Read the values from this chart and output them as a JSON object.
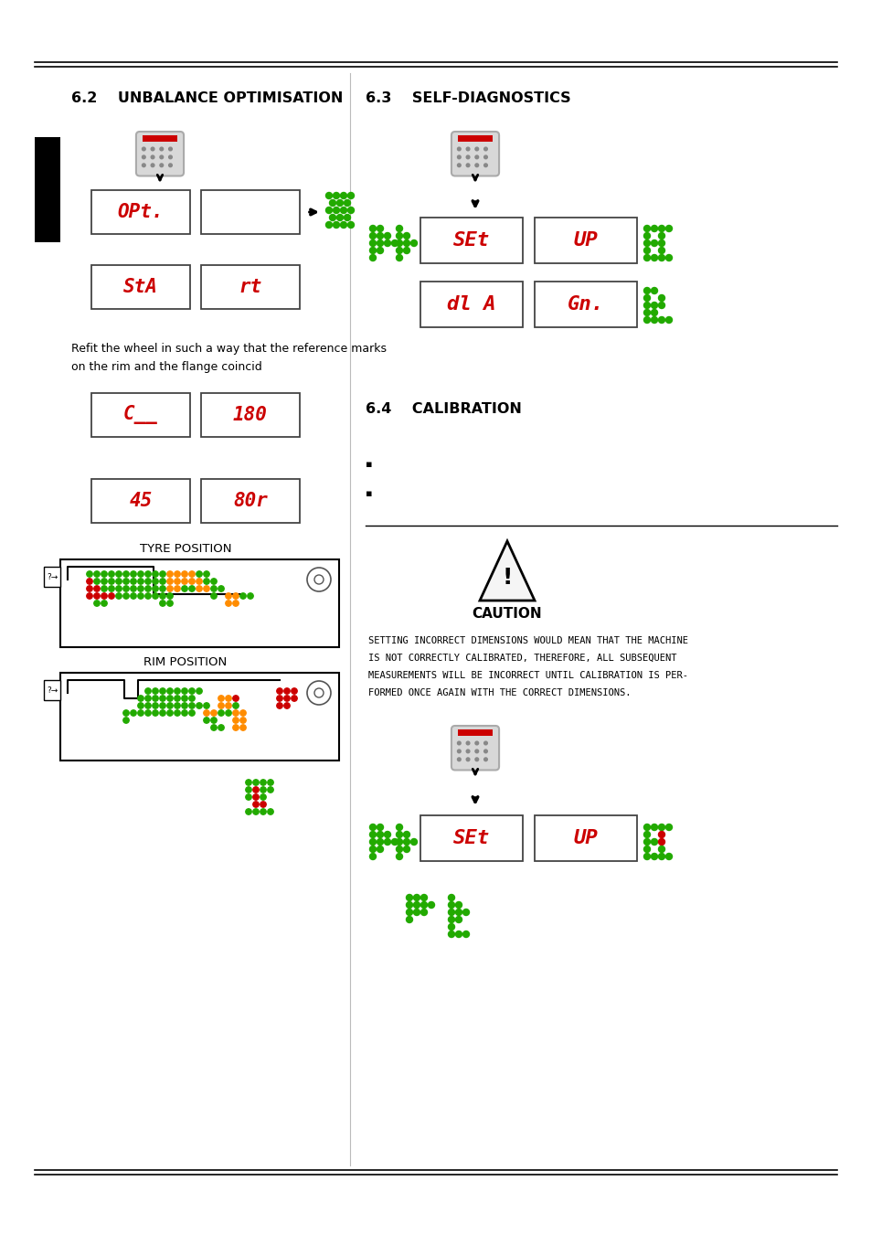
{
  "page_bg": "#ffffff",
  "section_62_title": "6.2    UNBALANCE OPTIMISATION",
  "section_63_title": "6.3    SELF-DIAGNOSTICS",
  "section_64_title": "6.4    CALIBRATION",
  "body_text": "Refit the wheel in such a way that the reference marks\non the rim and the flange coincid",
  "caution_title": "CAUTION",
  "caution_line1": "SETTING INCORRECT DIMENSIONS WOULD MEAN THAT THE MACHINE",
  "caution_line2": "IS NOT CORRECTLY CALIBRATED, THEREFORE, ALL SUBSEQUENT",
  "caution_line3": "MEASUREMENTS WILL BE INCORRECT UNTIL CALIBRATION IS PER-",
  "caution_line4": "FORMED ONCE AGAIN WITH THE CORRECT DIMENSIONS.",
  "caution_first_word": "S",
  "tyre_position_label": "TYRE POSITION",
  "rim_position_label": "RIM POSITION",
  "green": "#22aa00",
  "red": "#cc0000",
  "orange": "#ff8c00"
}
